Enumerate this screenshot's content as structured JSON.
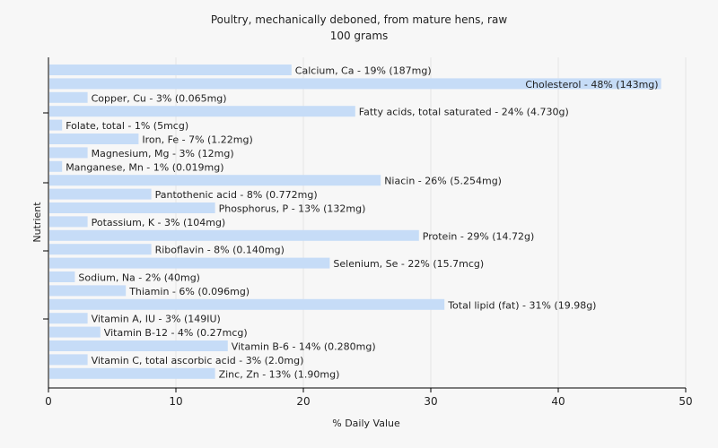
{
  "chart_data": {
    "type": "bar",
    "orientation": "horizontal",
    "title": "Poultry, mechanically deboned, from mature hens, raw",
    "subtitle": "100 grams",
    "xlabel": "% Daily Value",
    "ylabel": "Nutrient",
    "xlim": [
      0,
      50
    ],
    "xticks": [
      0,
      10,
      20,
      30,
      40,
      50
    ],
    "grid": true,
    "bar_color": "#c6dcf7",
    "categories": [
      "Calcium, Ca",
      "Cholesterol",
      "Copper, Cu",
      "Fatty acids, total saturated",
      "Folate, total",
      "Iron, Fe",
      "Magnesium, Mg",
      "Manganese, Mn",
      "Niacin",
      "Pantothenic acid",
      "Phosphorus, P",
      "Potassium, K",
      "Protein",
      "Riboflavin",
      "Selenium, Se",
      "Sodium, Na",
      "Thiamin",
      "Total lipid (fat)",
      "Vitamin A, IU",
      "Vitamin B-12",
      "Vitamin B-6",
      "Vitamin C, total ascorbic acid",
      "Zinc, Zn"
    ],
    "values": [
      19,
      48,
      3,
      24,
      1,
      7,
      3,
      1,
      26,
      8,
      13,
      3,
      29,
      8,
      22,
      2,
      6,
      31,
      3,
      4,
      14,
      3,
      13
    ],
    "labels": [
      "Calcium, Ca - 19% (187mg)",
      "Cholesterol - 48% (143mg)",
      "Copper, Cu - 3% (0.065mg)",
      "Fatty acids, total saturated - 24% (4.730g)",
      "Folate, total - 1% (5mcg)",
      "Iron, Fe - 7% (1.22mg)",
      "Magnesium, Mg - 3% (12mg)",
      "Manganese, Mn - 1% (0.019mg)",
      "Niacin - 26% (5.254mg)",
      "Pantothenic acid - 8% (0.772mg)",
      "Phosphorus, P - 13% (132mg)",
      "Potassium, K - 3% (104mg)",
      "Protein - 29% (14.72g)",
      "Riboflavin - 8% (0.140mg)",
      "Selenium, Se - 22% (15.7mcg)",
      "Sodium, Na - 2% (40mg)",
      "Thiamin - 6% (0.096mg)",
      "Total lipid (fat) - 31% (19.98g)",
      "Vitamin A, IU - 3% (149IU)",
      "Vitamin B-12 - 4% (0.27mcg)",
      "Vitamin B-6 - 14% (0.280mg)",
      "Vitamin C, total ascorbic acid - 3% (2.0mg)",
      "Zinc, Zn - 13% (1.90mg)"
    ]
  }
}
